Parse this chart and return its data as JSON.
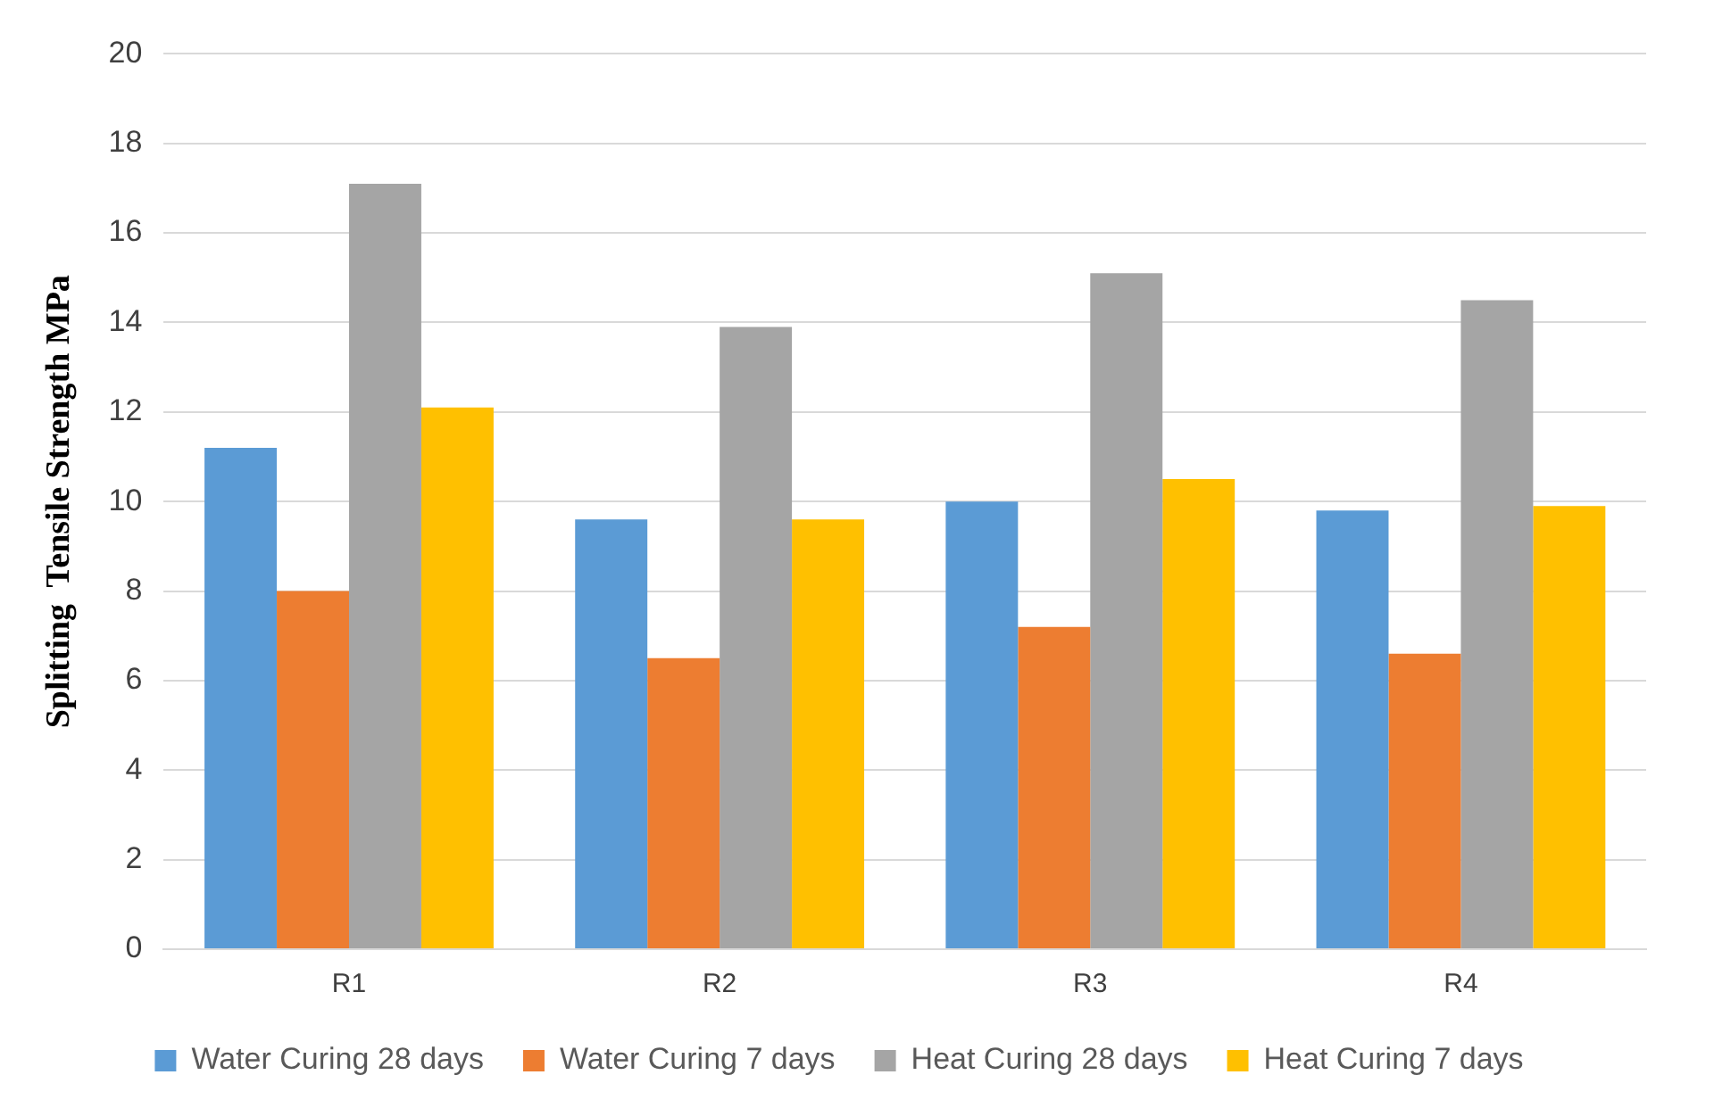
{
  "chart_data": {
    "type": "bar",
    "ylabel": "Splitting  Tensile Strength MPa",
    "categories": [
      "R1",
      "R2",
      "R3",
      "R4"
    ],
    "series": [
      {
        "name": "Water Curing 28 days",
        "color": "#5b9bd5",
        "values": [
          11.2,
          9.6,
          10.0,
          9.8
        ]
      },
      {
        "name": "Water Curing 7 days",
        "color": "#ed7d31",
        "values": [
          8.0,
          6.5,
          7.2,
          6.6
        ]
      },
      {
        "name": "Heat Curing 28 days",
        "color": "#a5a5a5",
        "values": [
          17.1,
          13.9,
          15.1,
          14.5
        ]
      },
      {
        "name": "Heat Curing 7 days",
        "color": "#ffc000",
        "values": [
          12.1,
          9.6,
          10.5,
          9.9
        ]
      }
    ],
    "ylim": [
      0,
      20
    ],
    "yticks": [
      0,
      2,
      4,
      6,
      8,
      10,
      12,
      14,
      16,
      18,
      20
    ],
    "grid": "y",
    "legend": "bottom"
  }
}
